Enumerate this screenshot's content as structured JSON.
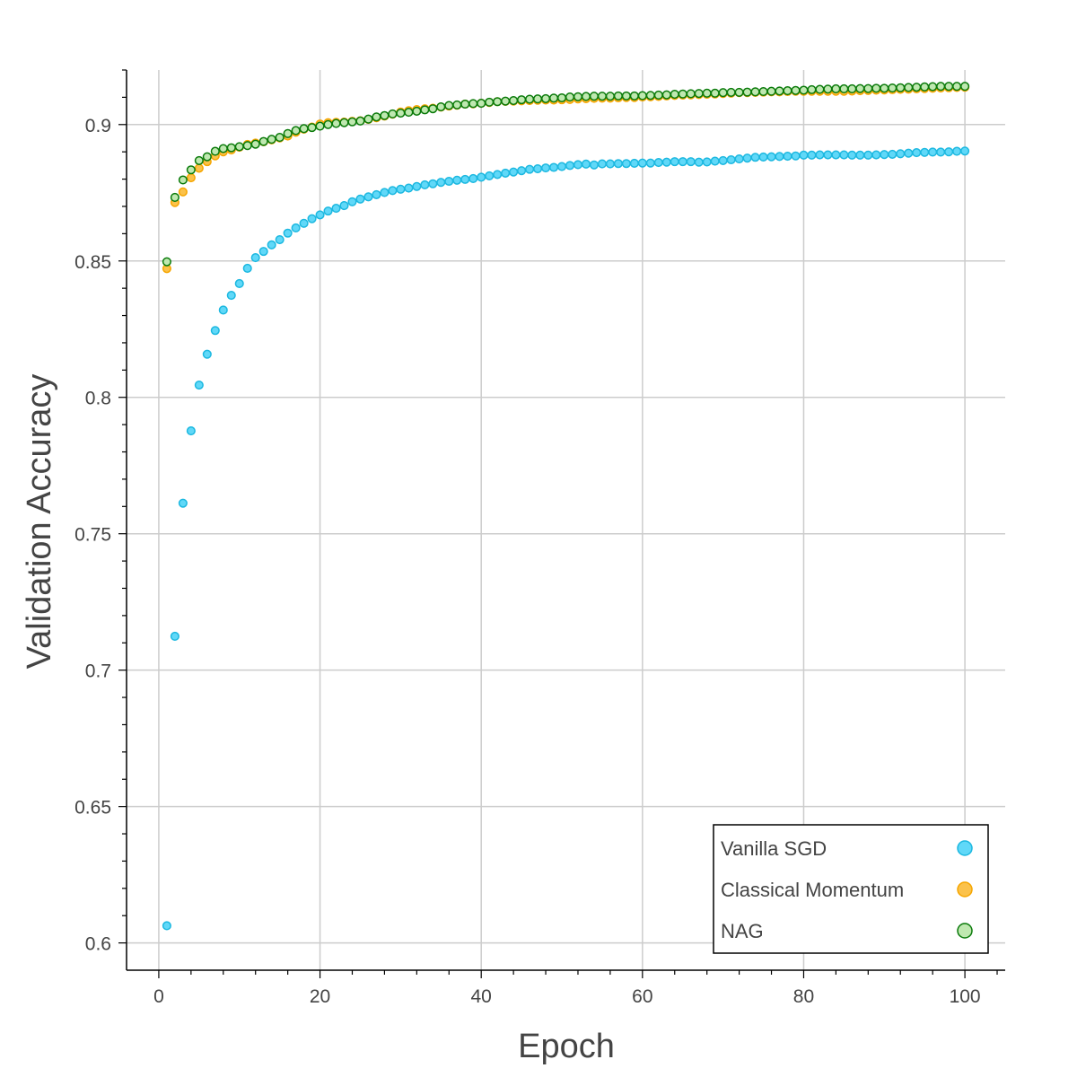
{
  "chart_data": {
    "type": "scatter",
    "title": "",
    "xlabel": "Epoch",
    "ylabel": "Validation Accuracy",
    "xlim": [
      -4,
      105
    ],
    "ylim": [
      0.59,
      0.92
    ],
    "x_ticks": [
      0,
      20,
      40,
      60,
      80,
      100
    ],
    "x_tick_labels": [
      "0",
      "20",
      "40",
      "60",
      "80",
      "100"
    ],
    "y_ticks": [
      0.6,
      0.65,
      0.7,
      0.75,
      0.8,
      0.85,
      0.9
    ],
    "y_tick_labels": [
      "0.6",
      "0.65",
      "0.7",
      "0.75",
      "0.8",
      "0.85",
      "0.9"
    ],
    "grid": true,
    "legend_position": "bottom-right",
    "x": [
      1,
      2,
      3,
      4,
      5,
      6,
      7,
      8,
      9,
      10,
      11,
      12,
      13,
      14,
      15,
      16,
      17,
      18,
      19,
      20,
      21,
      22,
      23,
      24,
      25,
      26,
      27,
      28,
      29,
      30,
      31,
      32,
      33,
      34,
      35,
      36,
      37,
      38,
      39,
      40,
      41,
      42,
      43,
      44,
      45,
      46,
      47,
      48,
      49,
      50,
      51,
      52,
      53,
      54,
      55,
      56,
      57,
      58,
      59,
      60,
      61,
      62,
      63,
      64,
      65,
      66,
      67,
      68,
      69,
      70,
      71,
      72,
      73,
      74,
      75,
      76,
      77,
      78,
      79,
      80,
      81,
      82,
      83,
      84,
      85,
      86,
      87,
      88,
      89,
      90,
      91,
      92,
      93,
      94,
      95,
      96,
      97,
      98,
      99,
      100
    ],
    "series": [
      {
        "name": "Vanilla SGD",
        "fill": "#60d8f8",
        "stroke": "#1cb8e0",
        "values": [
          0.6063,
          0.7124,
          0.7612,
          0.7877,
          0.8045,
          0.8158,
          0.8245,
          0.832,
          0.8374,
          0.8417,
          0.8473,
          0.8512,
          0.8535,
          0.8559,
          0.8578,
          0.8602,
          0.8621,
          0.8638,
          0.8655,
          0.8669,
          0.8683,
          0.8693,
          0.8703,
          0.8717,
          0.8727,
          0.8735,
          0.8743,
          0.8751,
          0.8758,
          0.8763,
          0.8767,
          0.8773,
          0.8779,
          0.8783,
          0.8788,
          0.8792,
          0.8796,
          0.8799,
          0.8802,
          0.8807,
          0.8812,
          0.8817,
          0.8822,
          0.8826,
          0.8831,
          0.8836,
          0.8838,
          0.8841,
          0.8843,
          0.8846,
          0.885,
          0.8853,
          0.8855,
          0.8852,
          0.8856,
          0.8856,
          0.8857,
          0.8857,
          0.8858,
          0.8859,
          0.8859,
          0.8861,
          0.8862,
          0.8864,
          0.8864,
          0.8864,
          0.8862,
          0.8863,
          0.8866,
          0.8868,
          0.8871,
          0.8874,
          0.8877,
          0.888,
          0.8881,
          0.8882,
          0.8883,
          0.8884,
          0.8885,
          0.8888,
          0.8888,
          0.8889,
          0.8889,
          0.8889,
          0.8889,
          0.8888,
          0.8888,
          0.8888,
          0.8889,
          0.889,
          0.8891,
          0.8893,
          0.8895,
          0.8897,
          0.8898,
          0.8899,
          0.8899,
          0.89,
          0.8902,
          0.8903
        ]
      },
      {
        "name": "Classical Momentum",
        "fill": "#fbc24b",
        "stroke": "#f6a600",
        "values": [
          0.8472,
          0.8714,
          0.8753,
          0.8805,
          0.884,
          0.8864,
          0.8885,
          0.89,
          0.8907,
          0.8917,
          0.8927,
          0.8932,
          0.8937,
          0.8944,
          0.8951,
          0.8958,
          0.8972,
          0.8983,
          0.8991,
          0.9002,
          0.9007,
          0.9008,
          0.9009,
          0.9012,
          0.9014,
          0.9019,
          0.9025,
          0.9031,
          0.9038,
          0.9046,
          0.9051,
          0.9055,
          0.9058,
          0.906,
          0.9064,
          0.9068,
          0.9071,
          0.9075,
          0.9076,
          0.9078,
          0.9081,
          0.9084,
          0.9085,
          0.9086,
          0.9087,
          0.9088,
          0.9089,
          0.909,
          0.909,
          0.9091,
          0.9092,
          0.9094,
          0.9095,
          0.9096,
          0.9097,
          0.9097,
          0.9098,
          0.9099,
          0.9099,
          0.9101,
          0.9102,
          0.9103,
          0.9105,
          0.9107,
          0.9108,
          0.9109,
          0.911,
          0.9111,
          0.9112,
          0.9114,
          0.9115,
          0.9117,
          0.9117,
          0.9118,
          0.9119,
          0.912,
          0.912,
          0.9121,
          0.9122,
          0.9122,
          0.9122,
          0.9122,
          0.9122,
          0.9122,
          0.9122,
          0.9123,
          0.9124,
          0.9125,
          0.9126,
          0.9127,
          0.9128,
          0.9129,
          0.913,
          0.9131,
          0.9132,
          0.9133,
          0.9134,
          0.9135,
          0.9136,
          0.9137
        ]
      },
      {
        "name": "NAG",
        "fill": "#bfe8b0",
        "stroke": "#0a7a0a",
        "values": [
          0.8497,
          0.8733,
          0.8797,
          0.8834,
          0.8868,
          0.8882,
          0.8902,
          0.8912,
          0.8915,
          0.8919,
          0.8923,
          0.8928,
          0.8938,
          0.8946,
          0.8953,
          0.8967,
          0.8978,
          0.8985,
          0.8989,
          0.8994,
          0.9,
          0.9004,
          0.9007,
          0.901,
          0.9013,
          0.902,
          0.9028,
          0.9033,
          0.9039,
          0.9042,
          0.9045,
          0.9049,
          0.9054,
          0.9058,
          0.9065,
          0.907,
          0.9072,
          0.9075,
          0.9077,
          0.9078,
          0.9082,
          0.9084,
          0.9086,
          0.9088,
          0.9091,
          0.9093,
          0.9094,
          0.9095,
          0.9097,
          0.9098,
          0.9101,
          0.9102,
          0.9103,
          0.9104,
          0.9104,
          0.9104,
          0.9105,
          0.9105,
          0.9105,
          0.9106,
          0.9107,
          0.9108,
          0.9109,
          0.9111,
          0.9112,
          0.9113,
          0.9114,
          0.9115,
          0.9115,
          0.9117,
          0.9118,
          0.9118,
          0.9119,
          0.912,
          0.9121,
          0.9122,
          0.9123,
          0.9124,
          0.9125,
          0.9126,
          0.9128,
          0.9129,
          0.913,
          0.9131,
          0.9131,
          0.9131,
          0.9132,
          0.9132,
          0.9133,
          0.9133,
          0.9134,
          0.9135,
          0.9136,
          0.9137,
          0.9138,
          0.9139,
          0.914,
          0.914,
          0.914,
          0.914
        ]
      }
    ]
  }
}
